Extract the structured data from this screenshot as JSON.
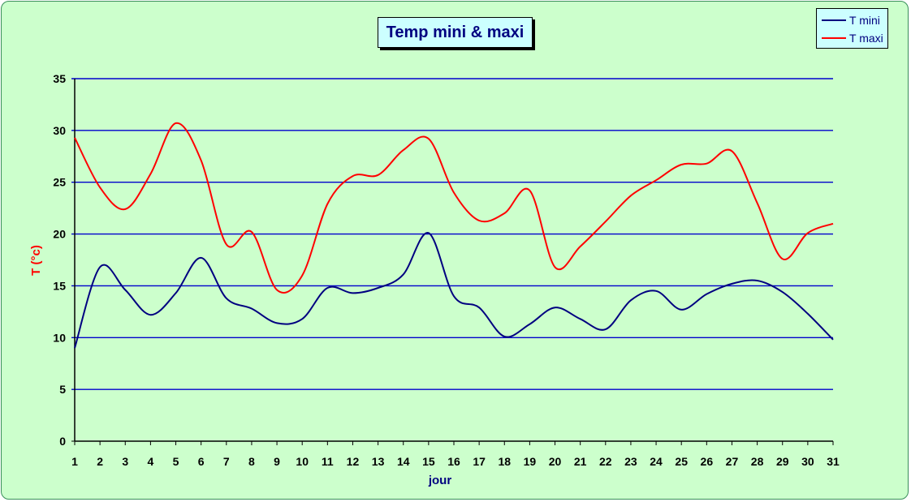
{
  "chart_data": {
    "type": "line",
    "title": "Temp mini & maxi",
    "xlabel": "jour",
    "ylabel": "T (°c)",
    "x": [
      1,
      2,
      3,
      4,
      5,
      6,
      7,
      8,
      9,
      10,
      11,
      12,
      13,
      14,
      15,
      16,
      17,
      18,
      19,
      20,
      21,
      22,
      23,
      24,
      25,
      26,
      27,
      28,
      29,
      30,
      31
    ],
    "xlim": [
      1,
      31
    ],
    "ylim": [
      0,
      35
    ],
    "yticks": [
      0,
      5,
      10,
      15,
      20,
      25,
      30,
      35
    ],
    "grid": true,
    "legend": "top-right",
    "series": [
      {
        "name": "T mini",
        "color": "#000080",
        "values": [
          9.0,
          16.8,
          14.6,
          12.2,
          14.3,
          17.7,
          13.8,
          12.8,
          11.4,
          11.8,
          14.8,
          14.3,
          14.8,
          16.1,
          20.1,
          14.0,
          12.9,
          10.1,
          11.3,
          12.9,
          11.8,
          10.8,
          13.6,
          14.5,
          12.7,
          14.2,
          15.2,
          15.5,
          14.4,
          12.3,
          9.8
        ]
      },
      {
        "name": "T maxi",
        "color": "#ff0000",
        "values": [
          29.3,
          24.5,
          22.4,
          25.8,
          30.7,
          27.1,
          19.0,
          20.2,
          14.6,
          16.0,
          22.9,
          25.6,
          25.7,
          28.1,
          29.2,
          24.0,
          21.3,
          22.0,
          24.2,
          16.8,
          18.8,
          21.2,
          23.7,
          25.2,
          26.7,
          26.8,
          28.0,
          23.0,
          17.6,
          20.1,
          21.0
        ]
      }
    ]
  }
}
